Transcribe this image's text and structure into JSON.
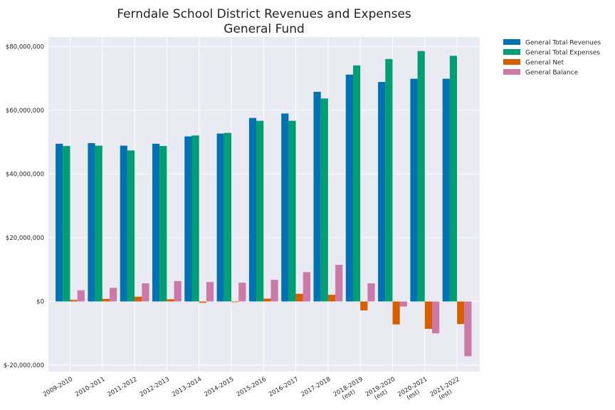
{
  "chart_data": {
    "type": "bar",
    "title": "Ferndale School District Revenues and Expenses",
    "subtitle": "General Fund",
    "xlabel": "",
    "ylabel": "",
    "categories": [
      [
        "2009-2010"
      ],
      [
        "2010-2011"
      ],
      [
        "2011-2012"
      ],
      [
        "2012-2013"
      ],
      [
        "2013-2014"
      ],
      [
        "2014-2015"
      ],
      [
        "2015-2016"
      ],
      [
        "2016-2017"
      ],
      [
        "2017-2018"
      ],
      [
        "2018-2019",
        "(est)"
      ],
      [
        "2019-2020",
        "(est)"
      ],
      [
        "2020-2021",
        "(est)"
      ],
      [
        "2021-2022",
        "(est)"
      ]
    ],
    "ylim": [
      -22000000,
      83000000
    ],
    "yticks": [
      -20000000,
      0,
      20000000,
      40000000,
      60000000,
      80000000
    ],
    "ytick_labels": [
      "$-20,000,000",
      "$0",
      "$20,000,000",
      "$40,000,000",
      "$60,000,000",
      "$80,000,000"
    ],
    "grid": true,
    "legend_position": "outside-top-right",
    "series": [
      {
        "name": "General Total Revenues",
        "color": "#0072b2",
        "values": [
          49500000,
          49700000,
          48900000,
          49500000,
          51800000,
          52700000,
          57600000,
          59000000,
          65800000,
          71200000,
          68900000,
          69900000,
          69900000
        ]
      },
      {
        "name": "General Total Expenses",
        "color": "#009e73",
        "values": [
          48800000,
          48900000,
          47400000,
          48800000,
          52100000,
          52900000,
          56700000,
          56700000,
          63700000,
          74100000,
          76100000,
          78600000,
          77100000
        ]
      },
      {
        "name": "General Net",
        "color": "#d55e00",
        "values": [
          500000,
          800000,
          1500000,
          700000,
          -400000,
          -200000,
          900000,
          2400000,
          2100000,
          -2800000,
          -7200000,
          -8600000,
          -7100000
        ]
      },
      {
        "name": "General Balance",
        "color": "#cc79a7",
        "values": [
          3500000,
          4300000,
          5700000,
          6400000,
          6100000,
          5900000,
          6800000,
          9200000,
          11500000,
          5700000,
          -1600000,
          -10000000,
          -17200000
        ]
      }
    ]
  }
}
